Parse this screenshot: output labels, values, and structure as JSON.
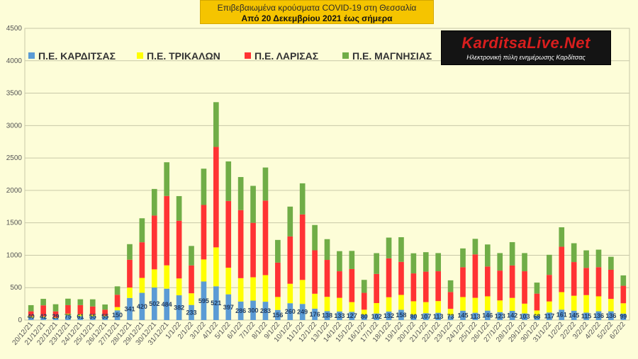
{
  "header": {
    "title": "Επιβεβαιωμένα κρούσματα COVID-19 στη Θεσσαλία",
    "subtitle": "Από 20 Δεκεμβρίου 2021 έως σήμερα"
  },
  "logo": {
    "name": "KarditsaLive.Net",
    "tagline": "Ηλεκτρονική πύλη ενημέρωσης Καρδίτσας"
  },
  "colors": {
    "karditsa": "#5b9bd5",
    "trikala": "#ffff00",
    "larisa": "#ff3333",
    "magnisia": "#70ad47",
    "grid": "#c8c8a8",
    "background": "#fdfdd8"
  },
  "chart_data": {
    "type": "bar",
    "stacked": true,
    "grid": true,
    "legend_position": "top",
    "ylim": [
      0,
      4500
    ],
    "yticks": [
      0,
      500,
      1000,
      1500,
      2000,
      2500,
      3000,
      3500,
      4000,
      4500
    ],
    "categories": [
      "20/12/21",
      "21/12/21",
      "22/12/21",
      "23/12/21",
      "24/12/21",
      "25/12/21",
      "26/12/21",
      "27/12/21",
      "28/12/21",
      "29/12/21",
      "30/12/21",
      "31/12/21",
      "1/1/22",
      "2/1/22",
      "3/1/22",
      "4/1/22",
      "5/1/22",
      "6/1/22",
      "7/1/22",
      "8/1/22",
      "9/1/22",
      "10/1/22",
      "11/1/22",
      "12/1/22",
      "13/1/22",
      "14/1/22",
      "15/1/22",
      "16/1/22",
      "17/1/22",
      "18/1/22",
      "19/1/22",
      "20/1/22",
      "21/1/22",
      "22/1/22",
      "23/1/22",
      "24/1/22",
      "25/1/22",
      "26/1/22",
      "27/1/22",
      "28/1/22",
      "29/1/22",
      "30/1/22",
      "31/1/22",
      "1/2/22",
      "2/2/22",
      "3/2/22",
      "4/2/22",
      "5/2/22",
      "6/2/22"
    ],
    "series": [
      {
        "name": "Π.Ε. ΚΑΡΔΙΤΣΑΣ",
        "color_key": "karditsa",
        "show_labels": true,
        "values": [
          40,
          42,
          29,
          75,
          61,
          55,
          55,
          150,
          341,
          420,
          502,
          484,
          382,
          233,
          595,
          521,
          397,
          286,
          300,
          283,
          156,
          260,
          249,
          176,
          138,
          133,
          127,
          80,
          102,
          132,
          158,
          80,
          107,
          113,
          73,
          145,
          113,
          146,
          123,
          142,
          103,
          68,
          117,
          161,
          145,
          115,
          136,
          136,
          99
        ]
      },
      {
        "name": "Π.Ε. ΤΡΙΚΑΛΩΝ",
        "color_key": "trikala",
        "values": [
          20,
          15,
          10,
          25,
          30,
          25,
          15,
          50,
          160,
          230,
          280,
          360,
          260,
          180,
          340,
          600,
          410,
          360,
          360,
          410,
          200,
          300,
          370,
          230,
          220,
          210,
          150,
          80,
          160,
          220,
          230,
          210,
          170,
          180,
          100,
          210,
          230,
          220,
          180,
          200,
          150,
          80,
          170,
          270,
          230,
          270,
          230,
          190,
          160
        ]
      },
      {
        "name": "Π.Ε. ΛΑΡΙΣΑΣ",
        "color_key": "larisa",
        "values": [
          75,
          170,
          95,
          130,
          140,
          130,
          90,
          190,
          430,
          550,
          830,
          1070,
          890,
          430,
          840,
          1550,
          1030,
          1050,
          840,
          1150,
          530,
          730,
          1010,
          670,
          570,
          410,
          510,
          260,
          450,
          600,
          510,
          430,
          470,
          460,
          260,
          460,
          670,
          460,
          460,
          500,
          500,
          260,
          410,
          700,
          520,
          420,
          450,
          450,
          270
        ]
      },
      {
        "name": "Π.Ε. ΜΑΓΝΗΣΙΑΣ",
        "color_key": "magnisia",
        "values": [
          95,
          100,
          110,
          100,
          90,
          110,
          80,
          130,
          240,
          370,
          410,
          520,
          380,
          300,
          560,
          690,
          610,
          510,
          570,
          510,
          350,
          460,
          480,
          390,
          320,
          310,
          280,
          200,
          320,
          320,
          380,
          310,
          300,
          280,
          180,
          290,
          240,
          340,
          270,
          360,
          280,
          170,
          310,
          300,
          290,
          270,
          270,
          200,
          160
        ]
      }
    ]
  }
}
